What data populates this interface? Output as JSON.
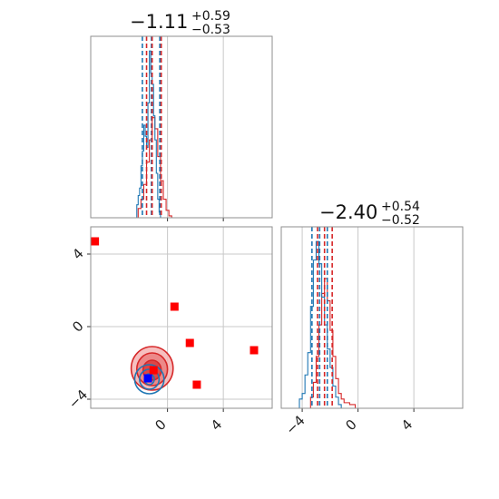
{
  "chart_data": {
    "type": "corner",
    "grid": true,
    "colors": {
      "series_a": "#1f77b4",
      "series_b": "#d62728",
      "points": "#ff0000",
      "truth": "#0000ff"
    },
    "parameters": [
      {
        "title_main": "−1.11",
        "title_sup": "+0.59",
        "title_sub": "−0.53"
      },
      {
        "title_main": "−2.40",
        "title_sup": "+0.54",
        "title_sub": "−0.52"
      }
    ],
    "xlim": [
      -5.5,
      7.5
    ],
    "ylim": [
      -4.5,
      5.5
    ],
    "xticks": [
      0,
      4
    ],
    "xtick_labels": [
      "0",
      "4"
    ],
    "diag2_xticks": [
      -4,
      0,
      4
    ],
    "diag2_xtick_labels": [
      "−4",
      "0",
      "4"
    ],
    "yticks": [
      4,
      0,
      -4
    ],
    "ytick_labels": [
      "4",
      "0",
      "−4"
    ],
    "hist_param1": {
      "series_a": [
        [
          -3.0,
          0.0
        ],
        [
          -2.2,
          0.07
        ],
        [
          -2.1,
          0.12
        ],
        [
          -2.0,
          0.16
        ],
        [
          -1.9,
          0.28
        ],
        [
          -1.8,
          0.36
        ],
        [
          -1.7,
          0.5
        ],
        [
          -1.6,
          0.44
        ],
        [
          -1.5,
          0.38
        ],
        [
          -1.4,
          0.62
        ],
        [
          -1.3,
          0.9
        ],
        [
          -1.2,
          0.78
        ],
        [
          -1.1,
          0.72
        ],
        [
          -1.0,
          0.55
        ],
        [
          -0.9,
          0.42
        ],
        [
          -0.8,
          0.24
        ],
        [
          -0.7,
          0.1
        ],
        [
          -0.6,
          0.03
        ],
        [
          -0.5,
          0.0
        ]
      ],
      "series_b": [
        [
          -2.6,
          0.0
        ],
        [
          -2.1,
          0.05
        ],
        [
          -1.9,
          0.1
        ],
        [
          -1.7,
          0.18
        ],
        [
          -1.5,
          0.3
        ],
        [
          -1.3,
          0.42
        ],
        [
          -1.1,
          0.54
        ],
        [
          -0.9,
          0.48
        ],
        [
          -0.7,
          0.33
        ],
        [
          -0.5,
          0.2
        ],
        [
          -0.3,
          0.1
        ],
        [
          -0.1,
          0.04
        ],
        [
          0.1,
          0.01
        ],
        [
          0.3,
          0.0
        ]
      ],
      "quantiles_a": [
        -1.8,
        -1.15,
        -0.55
      ],
      "quantiles_b": [
        -1.5,
        -1.1,
        -0.45
      ]
    },
    "hist_param2": {
      "series_a": [
        [
          -4.6,
          0.0
        ],
        [
          -4.2,
          0.05
        ],
        [
          -4.0,
          0.08
        ],
        [
          -3.8,
          0.18
        ],
        [
          -3.6,
          0.3
        ],
        [
          -3.4,
          0.55
        ],
        [
          -3.2,
          0.8
        ],
        [
          -3.0,
          0.9
        ],
        [
          -2.8,
          0.78
        ],
        [
          -2.6,
          0.6
        ],
        [
          -2.4,
          0.45
        ],
        [
          -2.2,
          0.32
        ],
        [
          -2.0,
          0.22
        ],
        [
          -1.8,
          0.12
        ],
        [
          -1.6,
          0.06
        ],
        [
          -1.4,
          0.02
        ],
        [
          -1.2,
          0.0
        ]
      ],
      "series_b": [
        [
          -3.8,
          0.0
        ],
        [
          -3.4,
          0.06
        ],
        [
          -3.2,
          0.14
        ],
        [
          -3.0,
          0.28
        ],
        [
          -2.8,
          0.45
        ],
        [
          -2.6,
          0.62
        ],
        [
          -2.4,
          0.7
        ],
        [
          -2.2,
          0.58
        ],
        [
          -2.0,
          0.42
        ],
        [
          -1.8,
          0.28
        ],
        [
          -1.6,
          0.16
        ],
        [
          -1.4,
          0.08
        ],
        [
          -1.2,
          0.05
        ],
        [
          -1.0,
          0.03
        ],
        [
          -0.6,
          0.02
        ],
        [
          -0.2,
          0.0
        ]
      ],
      "quantiles_a": [
        -3.3,
        -2.75,
        -2.2
      ],
      "quantiles_b": [
        -2.9,
        -2.4,
        -1.85
      ]
    },
    "scatter_points": [
      {
        "x": -5.2,
        "y": 4.7
      },
      {
        "x": 0.5,
        "y": 1.1
      },
      {
        "x": 1.6,
        "y": -0.9
      },
      {
        "x": 6.2,
        "y": -1.3
      },
      {
        "x": 2.1,
        "y": -3.2
      },
      {
        "x": -1.0,
        "y": -2.4
      }
    ],
    "truth_point": {
      "x": -1.4,
      "y": -2.85
    },
    "contours_b": [
      {
        "cx": -1.1,
        "cy": -2.3,
        "rx": 1.5,
        "ry": 1.2
      },
      {
        "cx": -1.1,
        "cy": -2.35,
        "rx": 1.1,
        "ry": 0.9
      },
      {
        "cx": -1.1,
        "cy": -2.4,
        "rx": 0.65,
        "ry": 0.55
      }
    ],
    "contours_a": [
      {
        "cx": -1.3,
        "cy": -2.9,
        "rx": 1.05,
        "ry": 0.8
      },
      {
        "cx": -1.3,
        "cy": -2.9,
        "rx": 0.7,
        "ry": 0.55
      },
      {
        "cx": -1.3,
        "cy": -2.9,
        "rx": 0.35,
        "ry": 0.3
      }
    ]
  }
}
